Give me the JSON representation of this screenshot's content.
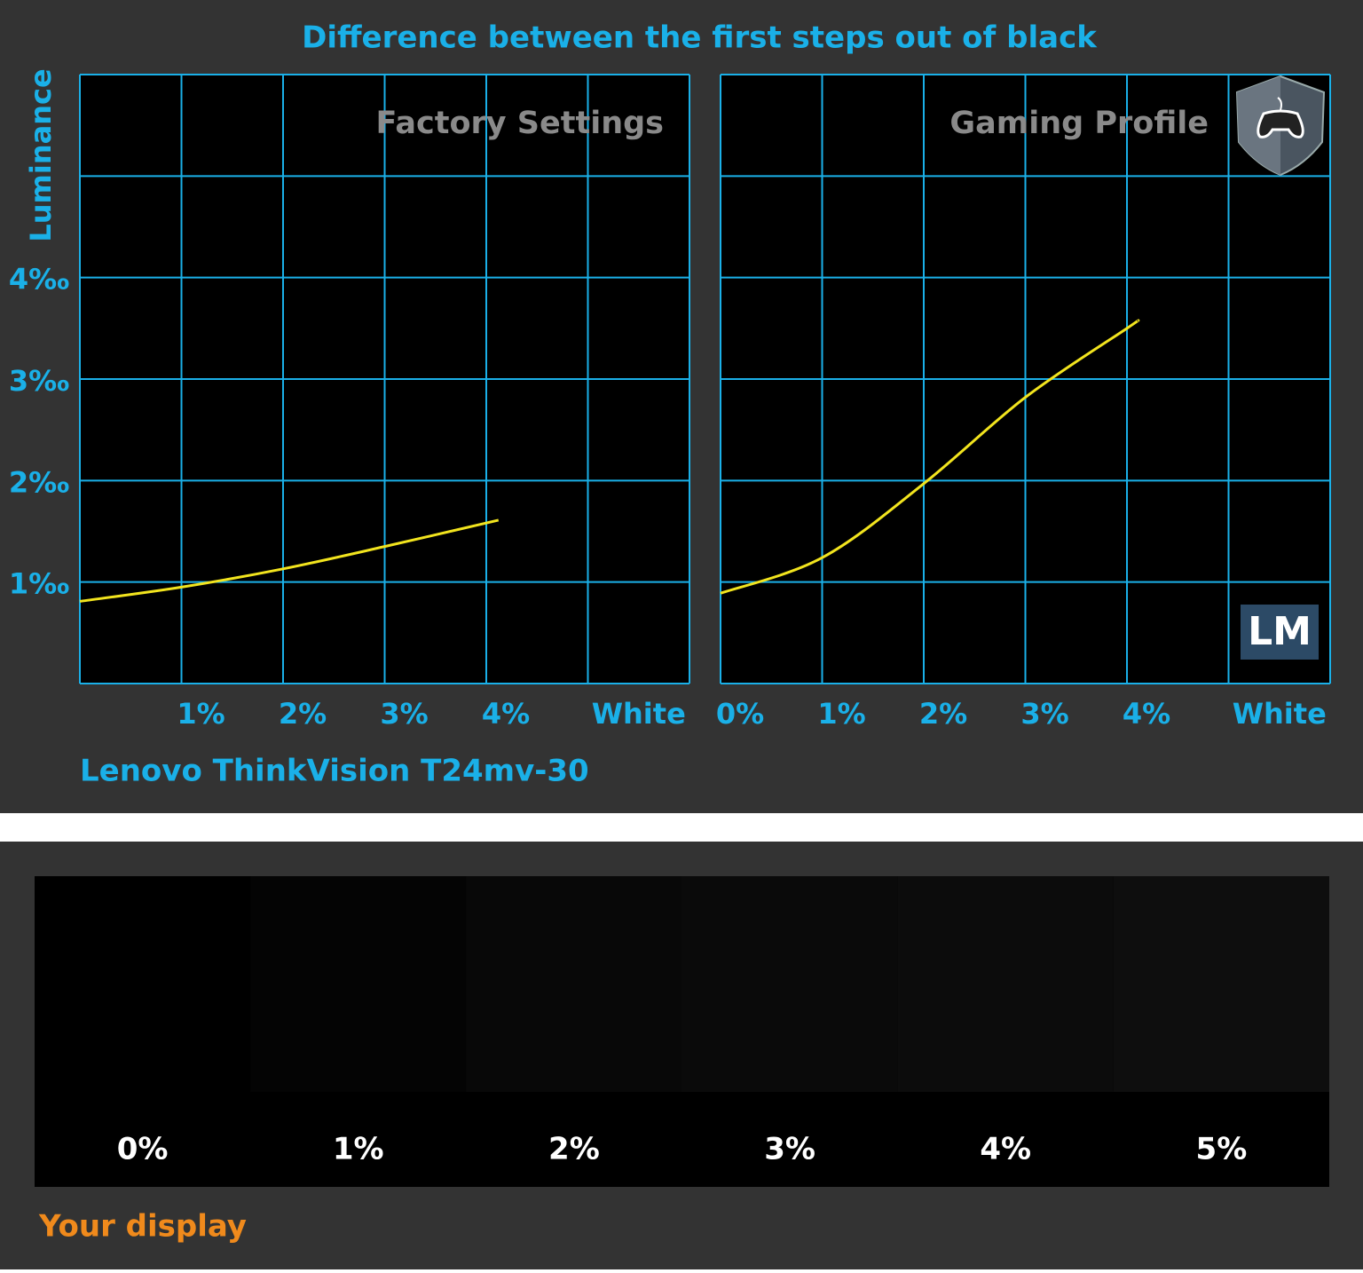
{
  "title": "Difference between the first steps out of black",
  "ylabel": "Luminance",
  "caption": "Lenovo ThinkVision T24mv-30",
  "logo": "LM",
  "chart_data": [
    {
      "type": "line",
      "title": "Factory Settings",
      "x": [
        0,
        1,
        2,
        3,
        4.12
      ],
      "series": [
        {
          "color": "#f2e41e",
          "values": [
            0.81,
            0.95,
            1.13,
            1.35,
            1.61
          ]
        }
      ],
      "xlim": [
        0,
        6
      ],
      "ylim": [
        0,
        6
      ],
      "xticks": [
        {
          "value": 1,
          "label": "1%"
        },
        {
          "value": 2,
          "label": "2%"
        },
        {
          "value": 3,
          "label": "3%"
        },
        {
          "value": 4,
          "label": "4%"
        },
        {
          "value": 5.5,
          "label": "White"
        }
      ],
      "yticks": [
        {
          "value": 1,
          "label": "1‰"
        },
        {
          "value": 2,
          "label": "2‰"
        },
        {
          "value": 3,
          "label": "3‰"
        },
        {
          "value": 4,
          "label": "4‰"
        }
      ],
      "xgrid": [
        0,
        1,
        2,
        3,
        4,
        5,
        6
      ],
      "ygrid": [
        0,
        1,
        2,
        3,
        4,
        5,
        6
      ]
    },
    {
      "type": "line",
      "title": "Gaming Profile",
      "x": [
        0,
        1,
        2,
        3,
        4,
        4.1
      ],
      "series": [
        {
          "color": "#f2e41e",
          "values": [
            0.89,
            1.24,
            1.97,
            2.82,
            3.5,
            3.57
          ]
        }
      ],
      "xlim": [
        0,
        6
      ],
      "ylim": [
        0,
        6
      ],
      "xticks": [
        {
          "value": 0,
          "label": "0%"
        },
        {
          "value": 1,
          "label": "1%"
        },
        {
          "value": 2,
          "label": "2%"
        },
        {
          "value": 3,
          "label": "3%"
        },
        {
          "value": 4,
          "label": "4%"
        },
        {
          "value": 5.5,
          "label": "White"
        }
      ],
      "xgrid": [
        0,
        1,
        2,
        3,
        4,
        5,
        6
      ],
      "ygrid": [
        0,
        1,
        2,
        3,
        4,
        5,
        6
      ]
    }
  ],
  "swatches": {
    "labels": [
      "0%",
      "1%",
      "2%",
      "3%",
      "4%",
      "5%"
    ],
    "colors": [
      "#000000",
      "#040404",
      "#080808",
      "#0a0a0a",
      "#0c0c0c",
      "#0e0e0e"
    ]
  },
  "footer": "Your display"
}
